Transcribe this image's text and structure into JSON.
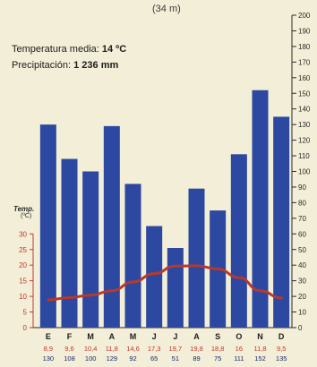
{
  "header": {
    "altitude": "(34 m)"
  },
  "stats": {
    "temp_label": "Temperatura media:",
    "temp_value": "14 ºC",
    "precip_label": "Precipitación:",
    "precip_value": "1 236 mm"
  },
  "colors": {
    "bars": "#2c48a0",
    "temp_line": "#b7392e",
    "temp_axis": "#c0392b",
    "background": "#f2eed7"
  },
  "chart_data": {
    "type": "bar",
    "categories": [
      "E",
      "F",
      "M",
      "A",
      "M",
      "J",
      "J",
      "A",
      "S",
      "O",
      "N",
      "D"
    ],
    "series": [
      {
        "values": [
          130,
          108,
          100,
          129,
          92,
          65,
          51,
          89,
          75,
          111,
          152,
          135
        ]
      },
      {
        "type": "line",
        "values": [
          8.9,
          9.6,
          10.4,
          11.8,
          14.6,
          17.3,
          19.7,
          19.8,
          18.8,
          16,
          11.8,
          9.5
        ]
      }
    ],
    "temp_labels": [
      "8,9",
      "9,6",
      "10,4",
      "11,8",
      "14,6",
      "17,3",
      "19,7",
      "19,8",
      "18,8",
      "16",
      "11,8",
      "9,5"
    ],
    "precip_labels": [
      "130",
      "108",
      "100",
      "129",
      "92",
      "65",
      "51",
      "89",
      "75",
      "111",
      "152",
      "135"
    ],
    "y_left_label": "Temp.",
    "y_left_unit": "(ºC)",
    "y_left_ticks": [
      0,
      5,
      10,
      15,
      20,
      25,
      30
    ],
    "y_left_lim": [
      0,
      30
    ],
    "y_right_ticks": [
      0,
      10,
      20,
      30,
      40,
      50,
      60,
      70,
      80,
      90,
      100,
      110,
      120,
      130,
      140,
      150,
      160,
      170,
      180,
      190,
      200
    ],
    "y_right_lim": [
      0,
      200
    ]
  }
}
